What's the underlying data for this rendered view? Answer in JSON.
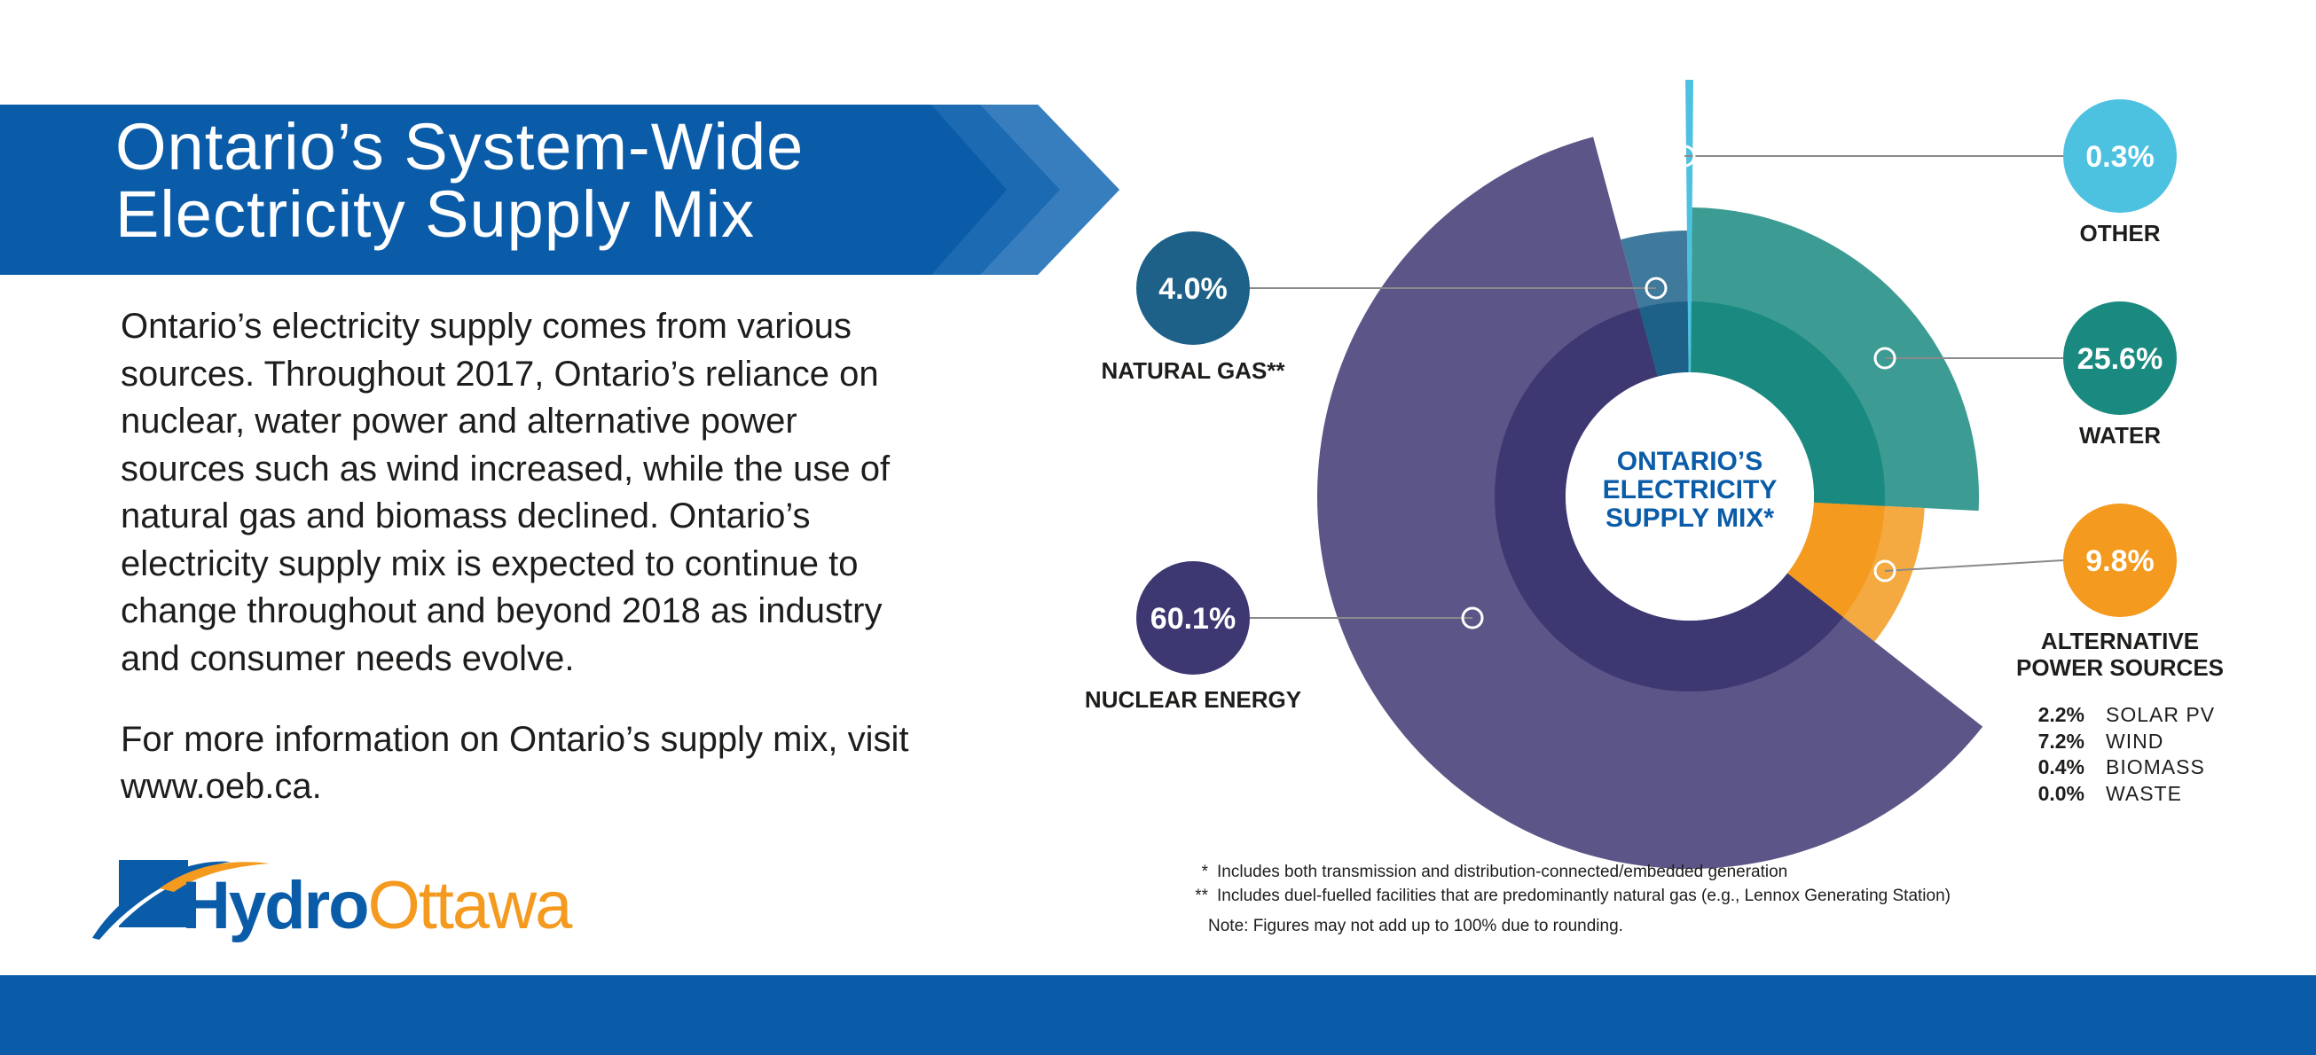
{
  "page": {
    "title": "Ontario’s System-Wide Electricity Supply Mix",
    "intro": "Ontario’s electricity supply comes from various sources. Throughout 2017, Ontario’s reliance on nuclear, water power and alternative power sources such as wind increased, while the use of natural gas and biomass declined. Ontario’s electricity supply mix is expected to continue to change throughout and beyond 2018 as industry and consumer needs evolve.",
    "more_info": "For more information on Ontario’s supply mix, visit www.oeb.ca.",
    "logo": {
      "hydro": "Hydro",
      "ottawa": "Ottawa"
    },
    "colors": {
      "banner": "#0a5ca8",
      "banner_dark": "#08508f",
      "footer": "#0a5ca8",
      "nuclear": "#3e3872",
      "natural_gas": "#1d6189",
      "water": "#1a8a80",
      "alternative": "#f39a1f",
      "other": "#4dc1e0",
      "center_text": "#0a5ca8"
    }
  },
  "chart_data": {
    "type": "pie",
    "title": "ONTARIO’S ELECTRICITY SUPPLY MIX*",
    "center_lines": [
      "ONTARIO’S",
      "ELECTRICITY",
      "SUPPLY MIX*"
    ],
    "series": [
      {
        "key": "other",
        "label": "OTHER",
        "value": 0.3,
        "value_label": "0.3%"
      },
      {
        "key": "water",
        "label": "WATER",
        "value": 25.6,
        "value_label": "25.6%"
      },
      {
        "key": "alternative",
        "label_lines": [
          "ALTERNATIVE",
          "POWER SOURCES"
        ],
        "value": 9.8,
        "value_label": "9.8%"
      },
      {
        "key": "nuclear",
        "label": "NUCLEAR ENERGY",
        "value": 60.1,
        "value_label": "60.1%"
      },
      {
        "key": "natural_gas",
        "label": "NATURAL GAS**",
        "value": 4.0,
        "value_label": "4.0%"
      }
    ],
    "alternative_breakdown": [
      {
        "value": "2.2%",
        "label": "SOLAR PV"
      },
      {
        "value": "7.2%",
        "label": "WIND"
      },
      {
        "value": "0.4%",
        "label": "BIOMASS"
      },
      {
        "value": "0.0%",
        "label": "WASTE"
      }
    ],
    "notes": [
      {
        "mark": "*",
        "text": "Includes both transmission and distribution-connected/embedded generation"
      },
      {
        "mark": "**",
        "text": "Includes duel-fuelled facilities that are predominantly natural gas (e.g., Lennox Generating Station)"
      }
    ],
    "rounding_note": "Note: Figures may not add up to 100% due to rounding."
  }
}
